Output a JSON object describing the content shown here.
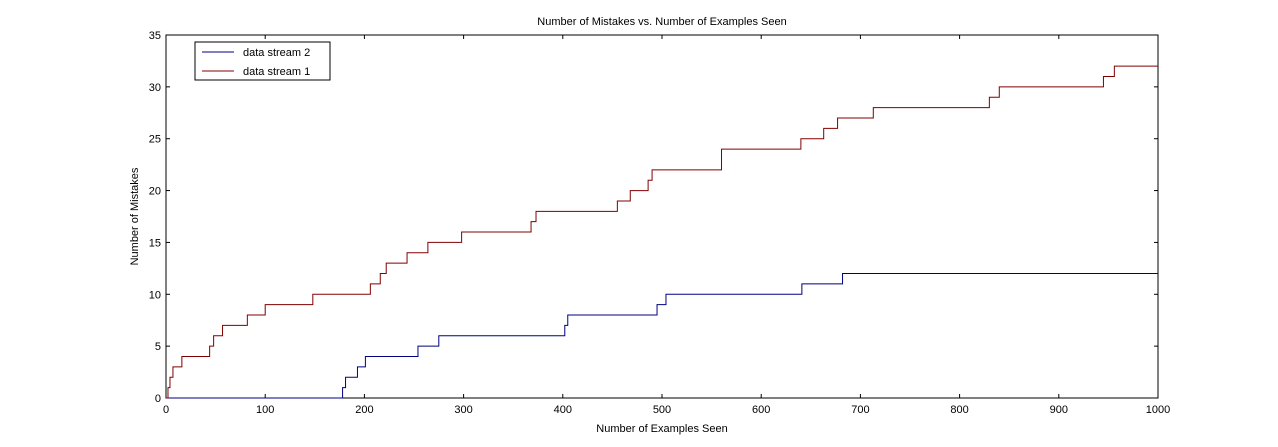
{
  "chart_data": {
    "type": "line",
    "title": "Number of Mistakes vs. Number of Examples Seen",
    "xlabel": "Number of Examples Seen",
    "ylabel": "Number of Mistakes",
    "xlim": [
      0,
      1000
    ],
    "ylim": [
      0,
      35
    ],
    "xticks": [
      0,
      100,
      200,
      300,
      400,
      500,
      600,
      700,
      800,
      900,
      1000
    ],
    "yticks": [
      0,
      5,
      10,
      15,
      20,
      25,
      30,
      35
    ],
    "grid": false,
    "legend_position": "top-left",
    "step": true,
    "series": [
      {
        "name": "data stream 2",
        "color": "#000080",
        "x": [
          0,
          176,
          178,
          181,
          193,
          198,
          201,
          254,
          275,
          402,
          405,
          495,
          504,
          641,
          682,
          1000
        ],
        "y": [
          0,
          0,
          1,
          2,
          3,
          3,
          4,
          5,
          6,
          7,
          8,
          9,
          10,
          11,
          12,
          12
        ]
      },
      {
        "name": "data stream 1",
        "color": "#800000",
        "x": [
          0,
          2,
          4,
          7,
          10,
          16,
          44,
          48,
          57,
          82,
          100,
          148,
          206,
          210,
          216,
          222,
          227,
          243,
          264,
          298,
          368,
          370,
          373,
          455,
          468,
          486,
          488,
          490,
          560,
          640,
          663,
          672,
          677,
          713,
          830,
          834,
          840,
          945,
          956,
          1000
        ],
        "y": [
          0,
          1,
          2,
          3,
          3,
          4,
          5,
          6,
          7,
          8,
          9,
          10,
          11,
          11,
          12,
          13,
          13,
          14,
          15,
          16,
          17,
          17,
          18,
          19,
          20,
          21,
          21,
          22,
          24,
          25,
          26,
          26,
          27,
          28,
          29,
          29,
          30,
          31,
          32,
          32
        ]
      }
    ]
  }
}
